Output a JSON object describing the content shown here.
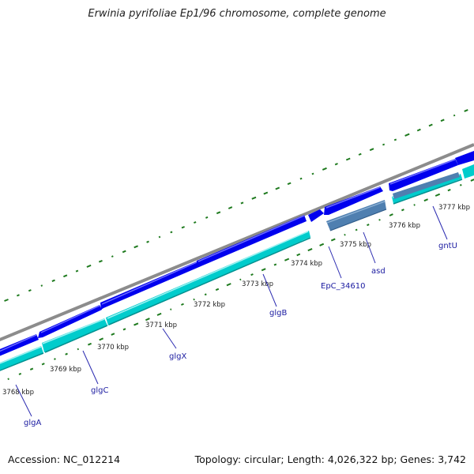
{
  "title": "Erwinia pyrifoliae Ep1/96 chromosome, complete genome",
  "footer": {
    "accession": "Accession: NC_012214",
    "summary": "Topology: circular; Length: 4,026,322 bp; Genes: 3,742"
  },
  "colors": {
    "backbone": "#8c8c8c",
    "forward_cds": "#0000ee",
    "forward_cds_highlight": "#6f6fff",
    "reverse_cds": "#00cccc",
    "reverse_cds_highlight": "#9ff2f2",
    "reverse_cds_shadow": "#009090",
    "pseudo_feature": "#4f7fb0",
    "gc_ticks": "#1e7a1e",
    "gene_label": "#1a1aa0"
  },
  "kbp_labels": [
    "3768 kbp",
    "3769 kbp",
    "3770 kbp",
    "3771 kbp",
    "3772 kbp",
    "3773 kbp",
    "3774 kbp",
    "3775 kbp",
    "3776 kbp",
    "3777 kbp"
  ],
  "genes": [
    {
      "name": "glgA"
    },
    {
      "name": "glgC"
    },
    {
      "name": "glgX"
    },
    {
      "name": "glgB"
    },
    {
      "name": "EpC_34610"
    },
    {
      "name": "asd"
    },
    {
      "name": "gntU"
    }
  ]
}
